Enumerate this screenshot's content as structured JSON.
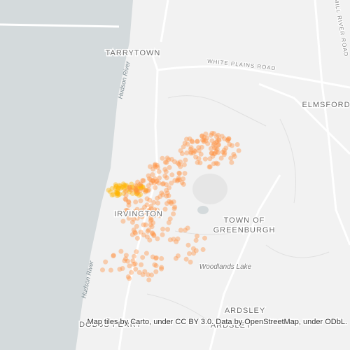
{
  "map": {
    "labels": {
      "tarrytown": "TARRYTOWN",
      "white_plains_road": "WHITE PLAINS ROAD",
      "mill_river_road": "MILL RIVER ROAD",
      "elmsford": "ELMSFORD",
      "hudson_river_north": "Hudson River",
      "hudson_river_south": "Hudson River",
      "irvington": "IRVINGTON",
      "town_of": "TOWN OF",
      "greenburgh": "GREENBURGH",
      "woodlands_lake": "Woodlands Lake",
      "dobbs_ferry": "DOBBS FERRY",
      "ardsley": "ARDSLEY",
      "ardsley_bottom": "ARDSLEY"
    },
    "attribution": "Map tiles by Carto, under CC BY 3.0. Data by OpenStreetMap, under ODbL."
  }
}
